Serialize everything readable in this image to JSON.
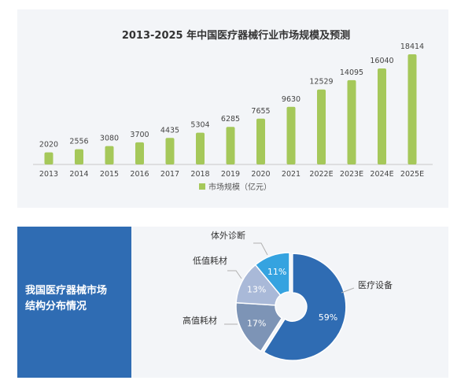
{
  "chart_data": [
    {
      "type": "bar",
      "title": "2013-2025 年中国医疗器械行业市场规模及预测",
      "categories": [
        "2013",
        "2014",
        "2015",
        "2016",
        "2017",
        "2018",
        "2019",
        "2020",
        "2021",
        "2022E",
        "2023E",
        "2024E",
        "2025E"
      ],
      "series": [
        {
          "name": "市场规模（亿元）",
          "values": [
            2020,
            2556,
            3080,
            3700,
            4435,
            5304,
            6285,
            7655,
            9630,
            12529,
            14095,
            16040,
            18414
          ]
        }
      ],
      "legend_position": "bottom",
      "bar_color": "#a5c85a",
      "grid": false
    },
    {
      "type": "pie",
      "title": "我国医疗器械市场结构分布情况",
      "slices": [
        {
          "label": "医疗设备",
          "value": 59,
          "text": "59%",
          "color": "#2f6cb3"
        },
        {
          "label": "高值耗材",
          "value": 17,
          "text": "17%",
          "color": "#7d94b6"
        },
        {
          "label": "低值耗材",
          "value": 13,
          "text": "13%",
          "color": "#a9b9d8"
        },
        {
          "label": "体外诊断",
          "value": 11,
          "text": "11%",
          "color": "#35a3e0"
        }
      ],
      "donut": true
    }
  ]
}
